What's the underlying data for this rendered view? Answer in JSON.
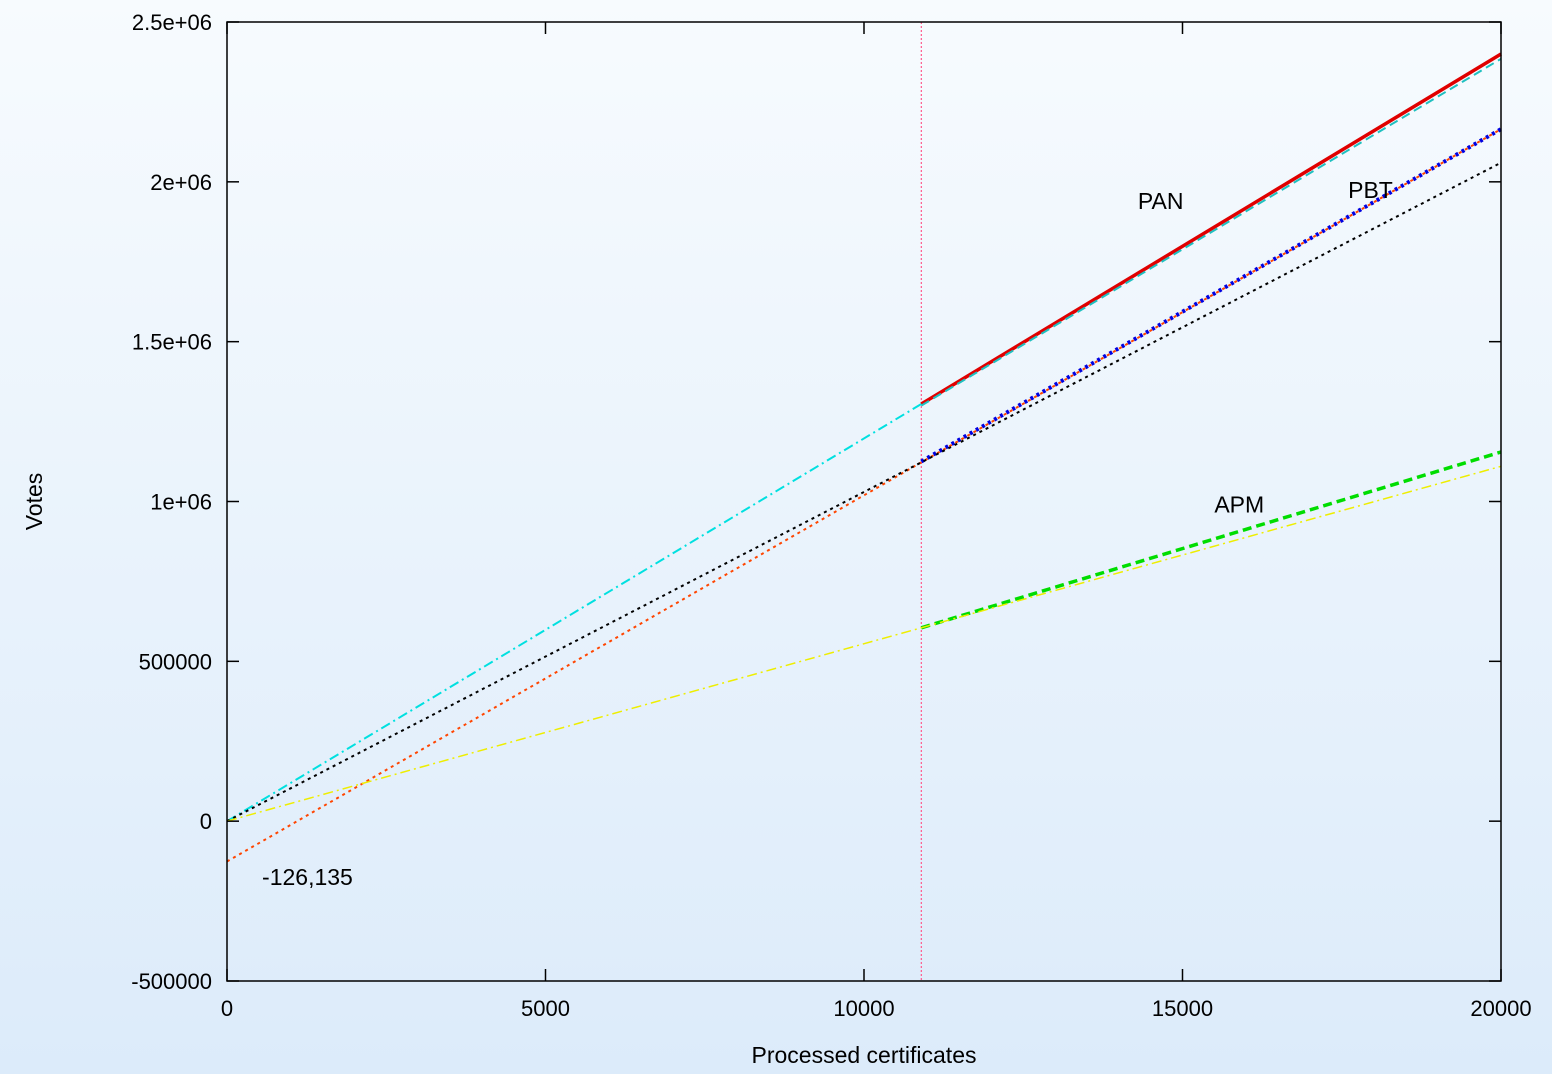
{
  "chart_data": {
    "type": "line",
    "title": "",
    "xlabel": "Processed certificates",
    "ylabel": "Votes",
    "xlim": [
      0,
      20000
    ],
    "ylim": [
      -500000,
      2500000
    ],
    "xticks": [
      0,
      5000,
      10000,
      15000,
      20000
    ],
    "xtick_labels": [
      "0",
      "5000",
      "10000",
      "15000",
      "20000"
    ],
    "yticks": [
      -500000,
      0,
      500000,
      1000000,
      1500000,
      2000000,
      2500000
    ],
    "ytick_labels": [
      "-500000",
      "0",
      "500000",
      "1e+06",
      "1.5e+06",
      "2e+06",
      "2.5e+06"
    ],
    "grid": false,
    "legend": "none",
    "vertical_marker": {
      "x": 10900,
      "color": "#ff5a8c"
    },
    "series": [
      {
        "x": [
          10900,
          20000
        ],
        "y": [
          1305000,
          2400000
        ],
        "color": "#e00000",
        "style": "solid",
        "width": 3.5
      },
      {
        "x": [
          10900,
          20000
        ],
        "y": [
          1300000,
          2385000
        ],
        "color": "#20c0c0",
        "style": "dash",
        "width": 2
      },
      {
        "x": [
          0,
          10900
        ],
        "y": [
          0,
          1305000
        ],
        "color": "#00e0e0",
        "style": "dashdot",
        "width": 2
      },
      {
        "x": [
          10900,
          20000
        ],
        "y": [
          1125000,
          2165000
        ],
        "color": "#0000e0",
        "style": "dot",
        "width": 4
      },
      {
        "x": [
          0,
          20000
        ],
        "y": [
          -126135,
          2165000
        ],
        "color": "#ff4500",
        "style": "dot",
        "width": 2
      },
      {
        "x": [
          0,
          20000
        ],
        "y": [
          0,
          2060000
        ],
        "color": "#000000",
        "style": "dot",
        "width": 2
      },
      {
        "x": [
          10900,
          20000
        ],
        "y": [
          605000,
          1155000
        ],
        "color": "#00dd00",
        "style": "dash",
        "width": 3.5
      },
      {
        "x": [
          0,
          20000
        ],
        "y": [
          0,
          1110000
        ],
        "color": "#eeee00",
        "style": "dashdot",
        "width": 1.5
      }
    ],
    "annotations": [
      {
        "text": "PAN",
        "x": 14300,
        "y": 1915000
      },
      {
        "text": "PBT",
        "x": 17600,
        "y": 1950000
      },
      {
        "text": "APM",
        "x": 15500,
        "y": 965000
      },
      {
        "text": "-126,135",
        "x": 550,
        "y": -200000
      }
    ]
  }
}
